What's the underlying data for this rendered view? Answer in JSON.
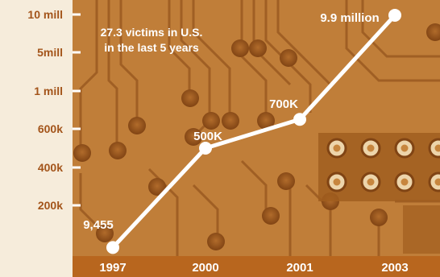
{
  "colors": {
    "page_background": "#f6ecdb",
    "plot_background": "#c8873f",
    "plot_dark": "#9e5a1c",
    "x_band": "#b8661e",
    "axis_text": "#a3541a",
    "line": "#ffffff"
  },
  "background_image": "circuit board photograph tinted orange",
  "annotation": {
    "line1": "27.3 victims in U.S.",
    "line2": "in the last 5 years"
  },
  "chart_data": {
    "type": "line",
    "title": "",
    "xlabel": "",
    "ylabel": "",
    "y_scale": "nonlinear (tick positions not evenly proportional)",
    "y_ticks": [
      "200k",
      "400k",
      "600k",
      "1 mill",
      "5mill",
      "10 mill"
    ],
    "y_tick_values": [
      200000,
      400000,
      600000,
      1000000,
      5000000,
      10000000
    ],
    "categories": [
      "1997",
      "2000",
      "2001",
      "2003"
    ],
    "series": [
      {
        "values": [
          9455,
          500000,
          700000,
          9900000
        ],
        "point_labels": [
          "9,455",
          "500K",
          "700K",
          "9.9 million"
        ]
      }
    ],
    "grid": false,
    "legend": "none"
  }
}
